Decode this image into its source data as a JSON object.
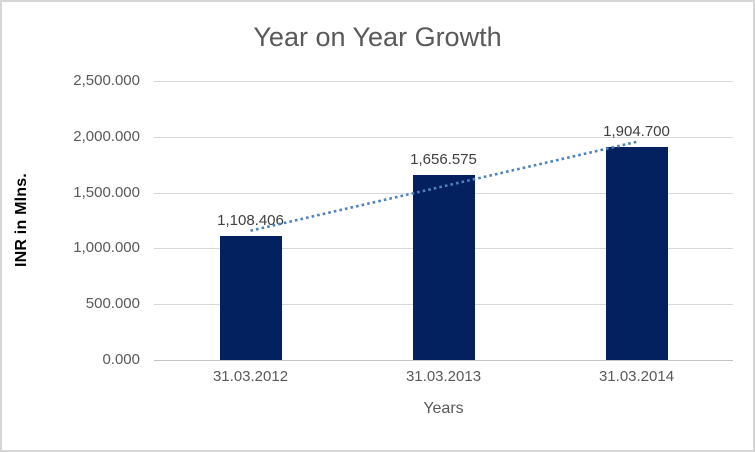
{
  "chart_data": {
    "type": "bar",
    "title": "Year on Year Growth",
    "xlabel": "Years",
    "ylabel": "INR in Mlns.",
    "categories": [
      "31.03.2012",
      "31.03.2013",
      "31.03.2014"
    ],
    "values": [
      1108.406,
      1656.575,
      1904.7
    ],
    "data_labels": [
      "1,108.406",
      "1,656.575",
      "1,904.700"
    ],
    "y_ticks": [
      0,
      500,
      1000,
      1500,
      2000,
      2500
    ],
    "y_tick_labels": [
      "0.000",
      "500.000",
      "1,000.000",
      "1,500.000",
      "2,000.000",
      "2,500.000"
    ],
    "ylim": [
      0,
      2500
    ],
    "grid": true,
    "legend": false,
    "trendline": {
      "type": "linear",
      "style": "dotted"
    },
    "colors": {
      "bar": "#04215F",
      "trendline": "#4E81BD",
      "gridline": "#D9D9D9",
      "axis_line": "#C3C3C3",
      "title_text": "#595959",
      "tick_text": "#595959",
      "data_label_text": "#404040",
      "y_axis_title_text": "#000000",
      "chart_border": "#D6D6D6",
      "background": "#FFFFFF"
    }
  }
}
